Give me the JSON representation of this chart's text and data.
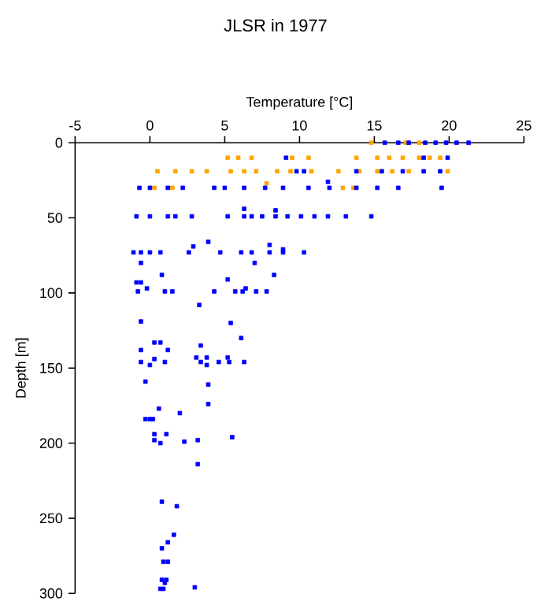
{
  "chart_data": {
    "type": "scatter",
    "title": "JLSR in 1977",
    "xlabel": "Temperature [°C]",
    "ylabel": "Depth [m]",
    "xlim": [
      -5,
      25
    ],
    "xticks": [
      -5,
      0,
      5,
      10,
      15,
      20,
      25
    ],
    "ylim": [
      300,
      0
    ],
    "yticks": [
      0,
      50,
      100,
      150,
      200,
      250,
      300
    ],
    "marker": "square",
    "grid": false,
    "series": [
      {
        "color": "#ffa500",
        "x": [
          14.8,
          17.1,
          18.0,
          5.2,
          5.9,
          6.8,
          9.5,
          10.6,
          13.8,
          15.2,
          16.0,
          16.9,
          18.0,
          18.7,
          19.4,
          0.5,
          1.7,
          2.8,
          3.8,
          5.4,
          6.3,
          7.1,
          8.5,
          9.4,
          10.8,
          12.6,
          14.0,
          15.2,
          16.2,
          17.3,
          19.9,
          0.3,
          1.5,
          7.8,
          12.9,
          13.6
        ],
        "values": [
          0,
          0,
          0,
          10,
          10,
          10,
          10,
          10,
          10,
          10,
          10,
          10,
          10,
          10,
          10,
          19,
          19,
          19,
          19,
          19,
          19,
          19,
          19,
          19,
          19,
          19,
          19,
          19,
          19,
          19,
          19,
          30,
          30,
          27,
          30,
          30
        ]
      },
      {
        "color": "#0000ff",
        "x": [
          15.7,
          16.6,
          17.3,
          18.4,
          19.1,
          19.8,
          20.5,
          21.3,
          9.1,
          18.3,
          19.9,
          9.8,
          10.3,
          13.8,
          15.5,
          16.9,
          18.3,
          19.4,
          -0.7,
          0,
          1.2,
          2.2,
          4.3,
          5.0,
          6.3,
          7.7,
          8.9,
          10.6,
          12.0,
          13.8,
          15.2,
          16.6,
          19.5,
          11.9,
          -0.9,
          0,
          1.2,
          1.7,
          2.8,
          5.2,
          6.3,
          6.8,
          7.5,
          8.4,
          9.2,
          10.1,
          11.0,
          11.9,
          13.1,
          14.8,
          6.3,
          8.4,
          -1.1,
          -0.6,
          0,
          0.7,
          2.6,
          4.7,
          6.1,
          6.8,
          8.0,
          8.9,
          10.3,
          3.9,
          2.9,
          8.0,
          8.9,
          -0.6,
          7.0,
          0.8,
          8.3,
          5.2,
          -0.9,
          -0.6,
          -0.2,
          6.4,
          -0.8,
          1.0,
          1.5,
          4.3,
          5.7,
          6.2,
          7.1,
          7.8,
          3.3,
          -0.6,
          5.4,
          6.1,
          0.3,
          0.7,
          3.4,
          -0.6,
          1.2,
          3.1,
          3.8,
          5.2,
          0.3,
          -0.6,
          1.0,
          3.4,
          4.6,
          5.3,
          6.3,
          0,
          3.8,
          -0.3,
          3.9,
          3.9,
          0.6,
          2.0,
          -0.3,
          0,
          0.2,
          0.3,
          1.1,
          5.5,
          0.3,
          3.2,
          2.3,
          0.7,
          3.2,
          0.8,
          1.8,
          1.6,
          1.2,
          0.8,
          1.2,
          0.9,
          0.8,
          1.1,
          1.0,
          3.0,
          0.7,
          0.9
        ],
        "values": [
          0,
          0,
          0,
          0,
          0,
          0,
          0,
          0,
          10,
          10,
          10,
          19,
          19,
          19,
          19,
          19,
          19,
          19,
          30,
          30,
          30,
          30,
          30,
          30,
          30,
          30,
          30,
          30,
          30,
          30,
          30,
          30,
          30,
          26,
          49,
          49,
          49,
          49,
          49,
          49,
          49,
          49,
          49,
          49,
          49,
          49,
          49,
          49,
          49,
          49,
          44,
          45,
          73,
          73,
          73,
          73,
          73,
          73,
          73,
          73,
          73,
          73,
          73,
          66,
          69,
          68,
          71,
          80,
          80,
          88,
          88,
          91,
          93,
          93,
          97,
          97,
          99,
          99,
          99,
          99,
          99,
          99,
          99,
          99,
          108,
          119,
          120,
          130,
          133,
          133,
          135,
          138,
          138,
          143,
          143,
          143,
          144,
          146,
          146,
          146,
          146,
          146,
          146,
          148,
          148,
          159,
          161,
          174,
          177,
          180,
          184,
          184,
          184,
          194,
          194,
          196,
          198,
          198,
          199,
          200,
          214,
          239,
          242,
          261,
          266,
          270,
          279,
          279,
          291,
          291,
          293,
          296,
          297,
          297
        ]
      }
    ]
  }
}
